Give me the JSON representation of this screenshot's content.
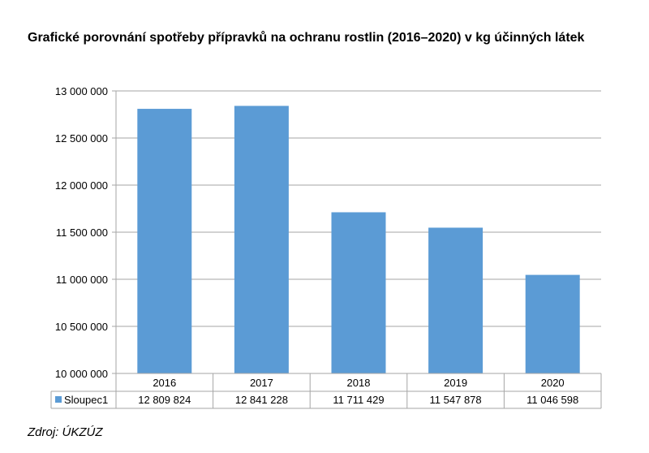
{
  "title": "Grafické porovnání spotřeby přípravků na ochranu rostlin (2016–2020) v kg účinných látek",
  "source": "Zdroj: ÚKZÚZ",
  "chart_data": {
    "type": "bar",
    "title": "Grafické porovnání spotřeby přípravků na ochranu rostlin (2016–2020) v kg účinných látek",
    "xlabel": "",
    "ylabel": "",
    "categories": [
      "2016",
      "2017",
      "2018",
      "2019",
      "2020"
    ],
    "series": [
      {
        "name": "Sloupec1",
        "values": [
          12809824,
          12841228,
          11711429,
          11547878,
          11046598
        ],
        "color": "#5b9bd5"
      }
    ],
    "data_table_labels": [
      "12 809 824",
      "12 841 228",
      "11 711 429",
      "11 547 878",
      "11 046 598"
    ],
    "ylim": [
      10000000,
      13000000
    ],
    "yticks": [
      10000000,
      10500000,
      11000000,
      11500000,
      12000000,
      12500000,
      13000000
    ],
    "ytick_labels": [
      "10 000 000",
      "10 500 000",
      "11 000 000",
      "11 500 000",
      "12 000 000",
      "12 500 000",
      "13 000 000"
    ],
    "grid": true,
    "legend": "data-table"
  }
}
